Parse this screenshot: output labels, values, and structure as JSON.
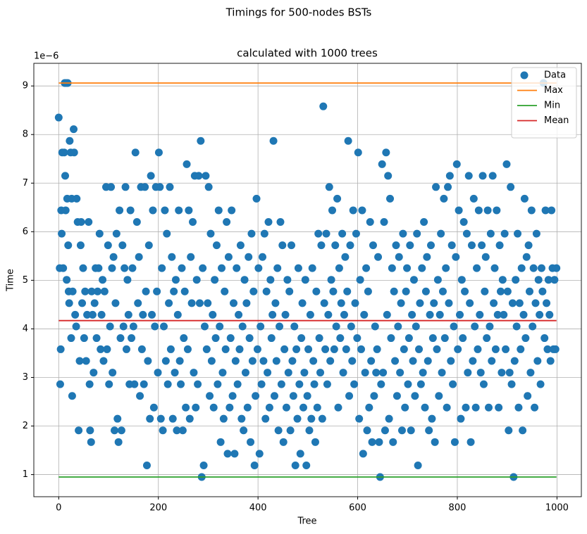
{
  "chart_data": {
    "type": "scatter",
    "suptitle": "Timings for 500-nodes BSTs",
    "title": "calculated with 1000 trees",
    "xlabel": "Tree",
    "ylabel": "Time",
    "offset_text": "1e−6",
    "xlim": [
      -49.95,
      1048.95
    ],
    "xticks": [
      0,
      200,
      400,
      600,
      800,
      1000
    ],
    "ylim": [
      0.545,
      9.466
    ],
    "yticks": [
      1,
      2,
      3,
      4,
      5,
      6,
      7,
      8,
      9
    ],
    "grid": true,
    "legend": "upper right",
    "series": [
      {
        "name": "Data",
        "type": "scatter",
        "color": "#1f77b4",
        "x": [
          0,
          2,
          3,
          4,
          5,
          6,
          7,
          9,
          11,
          12,
          13,
          14,
          15,
          16,
          17,
          18,
          19,
          20,
          21,
          22,
          24,
          25,
          26,
          27,
          28,
          30,
          31,
          33,
          35,
          36,
          38,
          40,
          42,
          44,
          45,
          47,
          49,
          51,
          53,
          55,
          57,
          60,
          62,
          63,
          65,
          66,
          68,
          70,
          72,
          74,
          76,
          78,
          80,
          82,
          84,
          86,
          88,
          90,
          92,
          95,
          97,
          99,
          101,
          103,
          105,
          107,
          108,
          110,
          112,
          114,
          116,
          118,
          120,
          122,
          124,
          126,
          128,
          130,
          132,
          134,
          136,
          138,
          140,
          142,
          144,
          146,
          148,
          150,
          152,
          154,
          157,
          159,
          161,
          163,
          165,
          167,
          169,
          171,
          173,
          175,
          177,
          179,
          181,
          183,
          185,
          187,
          189,
          191,
          193,
          195,
          197,
          199,
          201,
          203,
          205,
          207,
          209,
          211,
          213,
          215,
          217,
          219,
          221,
          223,
          225,
          227,
          229,
          231,
          233,
          235,
          237,
          239,
          241,
          243,
          245,
          247,
          249,
          251,
          253,
          255,
          257,
          259,
          261,
          263,
          265,
          267,
          269,
          271,
          273,
          275,
          277,
          279,
          281,
          283,
          285,
          287,
          289,
          291,
          293,
          295,
          297,
          299,
          301,
          303,
          305,
          307,
          309,
          311,
          313,
          315,
          317,
          319,
          321,
          323,
          325,
          327,
          329,
          331,
          333,
          335,
          337,
          339,
          341,
          343,
          345,
          347,
          349,
          351,
          353,
          355,
          357,
          359,
          361,
          363,
          365,
          367,
          369,
          371,
          373,
          375,
          377,
          379,
          381,
          383,
          385,
          387,
          389,
          391,
          393,
          395,
          397,
          399,
          401,
          403,
          405,
          407,
          409,
          411,
          413,
          415,
          417,
          419,
          421,
          423,
          425,
          427,
          429,
          431,
          433,
          435,
          437,
          439,
          441,
          443,
          445,
          447,
          449,
          451,
          453,
          455,
          457,
          459,
          461,
          463,
          465,
          467,
          469,
          471,
          473,
          475,
          477,
          479,
          481,
          483,
          485,
          487,
          489,
          491,
          493,
          495,
          497,
          499,
          501,
          503,
          505,
          507,
          509,
          511,
          513,
          515,
          517,
          519,
          521,
          523,
          525,
          527,
          529,
          531,
          533,
          535,
          537,
          539,
          541,
          543,
          545,
          547,
          549,
          551,
          553,
          555,
          557,
          559,
          561,
          563,
          565,
          567,
          569,
          571,
          573,
          575,
          577,
          579,
          581,
          583,
          585,
          587,
          589,
          591,
          593,
          595,
          597,
          599,
          601,
          603,
          605,
          607,
          609,
          611,
          613,
          615,
          617,
          619,
          621,
          623,
          625,
          627,
          629,
          631,
          633,
          635,
          637,
          639,
          641,
          643,
          645,
          647,
          649,
          651,
          653,
          655,
          657,
          659,
          661,
          663,
          665,
          667,
          669,
          671,
          673,
          675,
          677,
          679,
          681,
          683,
          685,
          687,
          689,
          691,
          693,
          695,
          697,
          699,
          701,
          703,
          705,
          707,
          709,
          711,
          713,
          715,
          717,
          719,
          721,
          723,
          725,
          727,
          729,
          731,
          733,
          735,
          737,
          739,
          741,
          743,
          745,
          747,
          749,
          751,
          753,
          755,
          757,
          759,
          761,
          763,
          765,
          767,
          769,
          771,
          773,
          775,
          777,
          779,
          781,
          783,
          785,
          787,
          789,
          791,
          793,
          795,
          797,
          799,
          801,
          803,
          805,
          807,
          809,
          811,
          813,
          815,
          817,
          819,
          821,
          823,
          825,
          827,
          829,
          831,
          833,
          835,
          837,
          839,
          841,
          843,
          845,
          847,
          849,
          851,
          853,
          855,
          857,
          859,
          861,
          863,
          865,
          867,
          869,
          871,
          873,
          875,
          877,
          879,
          881,
          883,
          885,
          887,
          889,
          891,
          893,
          895,
          897,
          899,
          901,
          903,
          905,
          907,
          909,
          911,
          913,
          915,
          917,
          919,
          921,
          923,
          925,
          927,
          929,
          931,
          933,
          935,
          937,
          939,
          941,
          943,
          945,
          947,
          949,
          951,
          953,
          955,
          957,
          959,
          961,
          963,
          965,
          967,
          969,
          971,
          973,
          975,
          977,
          979,
          981,
          983,
          985,
          987,
          989,
          991,
          993,
          995,
          997,
          999
        ],
        "values": [
          8.35,
          5.25,
          2.86,
          3.58,
          6.44,
          5.96,
          7.63,
          5.25,
          7.63,
          9.06,
          7.15,
          6.44,
          9.06,
          5.01,
          6.68,
          9.06,
          5.72,
          4.77,
          4.53,
          7.87,
          7.63,
          3.81,
          6.68,
          2.62,
          4.77,
          8.11,
          7.63,
          4.29,
          4.05,
          6.68,
          6.2,
          1.91,
          3.34,
          5.72,
          6.2,
          4.53,
          5.25,
          3.81,
          4.77,
          3.34,
          4.29,
          6.2,
          2.86,
          1.91,
          1.67,
          4.77,
          4.29,
          3.1,
          4.53,
          5.25,
          3.81,
          4.77,
          5.25,
          5.96,
          3.58,
          4.29,
          5.01,
          3.34,
          4.77,
          6.92,
          3.58,
          5.72,
          2.86,
          4.05,
          6.92,
          5.25,
          3.1,
          5.48,
          1.91,
          4.53,
          5.96,
          2.15,
          1.67,
          6.44,
          3.81,
          1.91,
          5.72,
          4.05,
          5.25,
          6.92,
          3.58,
          5.01,
          4.29,
          2.86,
          6.44,
          3.81,
          5.25,
          4.05,
          2.86,
          7.63,
          6.2,
          4.53,
          5.48,
          2.62,
          6.92,
          3.58,
          4.29,
          2.86,
          6.92,
          4.77,
          1.19,
          3.34,
          5.72,
          2.15,
          7.15,
          4.29,
          6.44,
          2.38,
          4.05,
          6.92,
          4.77,
          3.1,
          7.63,
          6.92,
          2.15,
          5.25,
          1.91,
          4.05,
          6.44,
          3.34,
          5.96,
          2.86,
          4.53,
          6.92,
          3.58,
          5.48,
          2.15,
          4.77,
          3.1,
          5.01,
          1.91,
          4.29,
          6.44,
          3.34,
          2.86,
          5.25,
          1.91,
          3.81,
          4.77,
          2.38,
          7.39,
          3.58,
          6.44,
          2.15,
          5.48,
          4.53,
          6.2,
          3.1,
          7.15,
          2.38,
          5.01,
          2.86,
          7.15,
          4.53,
          7.87,
          0.95,
          5.25,
          1.19,
          4.05,
          7.15,
          3.58,
          4.53,
          6.92,
          2.62,
          5.96,
          3.34,
          4.29,
          2.38,
          5.01,
          3.81,
          5.72,
          2.86,
          6.44,
          4.05,
          1.67,
          5.25,
          3.1,
          2.15,
          4.77,
          3.58,
          6.2,
          1.43,
          5.48,
          2.38,
          3.81,
          6.44,
          2.62,
          4.53,
          1.43,
          3.34,
          5.25,
          2.86,
          4.29,
          3.58,
          5.72,
          2.15,
          4.05,
          1.91,
          5.01,
          3.1,
          4.53,
          2.38,
          5.48,
          3.81,
          1.67,
          5.96,
          3.34,
          4.77,
          1.19,
          2.62,
          6.68,
          3.58,
          5.25,
          1.43,
          4.05,
          2.86,
          5.48,
          3.34,
          5.96,
          2.15,
          4.77,
          3.1,
          6.2,
          2.38,
          5.01,
          3.81,
          4.29,
          7.87,
          2.62,
          4.53,
          3.34,
          5.25,
          1.91,
          4.05,
          6.2,
          2.86,
          5.72,
          1.67,
          3.58,
          4.29,
          2.38,
          5.01,
          3.1,
          4.77,
          1.91,
          5.72,
          3.34,
          2.62,
          4.05,
          1.19,
          3.58,
          2.15,
          5.25,
          2.86,
          1.43,
          3.81,
          4.53,
          2.38,
          3.1,
          5.01,
          1.19,
          2.62,
          3.58,
          1.91,
          4.29,
          2.15,
          5.25,
          3.34,
          2.86,
          1.67,
          4.77,
          2.38,
          5.96,
          3.81,
          3.1,
          5.72,
          2.15,
          8.58,
          4.53,
          3.58,
          5.96,
          2.86,
          4.29,
          6.92,
          3.34,
          5.01,
          6.44,
          4.77,
          3.58,
          5.72,
          4.05,
          6.68,
          2.38,
          5.25,
          3.81,
          4.53,
          5.96,
          3.1,
          4.29,
          5.48,
          3.58,
          4.77,
          7.87,
          2.62,
          5.72,
          4.05,
          3.34,
          6.44,
          2.86,
          4.53,
          5.96,
          3.81,
          7.63,
          2.15,
          5.01,
          3.58,
          6.44,
          1.43,
          4.29,
          3.1,
          5.25,
          1.91,
          4.77,
          2.38,
          6.2,
          3.34,
          1.67,
          5.72,
          2.62,
          4.05,
          3.1,
          3.58,
          5.48,
          1.67,
          0.95,
          2.86,
          7.39,
          3.1,
          6.2,
          1.91,
          7.63,
          4.29,
          7.15,
          2.15,
          6.68,
          3.81,
          5.25,
          1.67,
          4.77,
          3.34,
          5.72,
          2.62,
          4.05,
          5.48,
          3.1,
          4.53,
          1.91,
          5.96,
          3.58,
          2.38,
          4.77,
          5.25,
          2.86,
          3.81,
          5.72,
          1.91,
          4.29,
          3.34,
          5.01,
          2.62,
          4.05,
          5.96,
          1.19,
          3.58,
          4.53,
          2.86,
          5.25,
          3.1,
          6.2,
          2.38,
          4.77,
          5.48,
          3.34,
          1.91,
          4.29,
          5.72,
          2.15,
          3.81,
          4.53,
          1.67,
          6.92,
          3.58,
          5.01,
          2.62,
          4.29,
          5.96,
          3.1,
          4.77,
          6.68,
          3.81,
          5.25,
          2.38,
          6.92,
          4.53,
          7.15,
          3.34,
          5.72,
          2.86,
          4.05,
          1.67,
          5.48,
          7.39,
          3.58,
          6.44,
          4.29,
          2.15,
          5.01,
          3.81,
          6.2,
          4.77,
          2.38,
          5.96,
          3.1,
          7.15,
          4.53,
          1.67,
          5.72,
          3.34,
          6.68,
          4.05,
          2.38,
          5.25,
          3.58,
          6.44,
          4.29,
          3.1,
          5.72,
          7.15,
          2.86,
          4.77,
          5.48,
          3.81,
          6.44,
          2.38,
          4.05,
          5.96,
          3.34,
          7.15,
          4.53,
          5.25,
          3.58,
          6.44,
          4.29,
          2.38,
          5.72,
          4.77,
          3.1,
          5.01,
          4.29,
          5.96,
          3.58,
          7.39,
          4.77,
          1.91,
          3.1,
          6.92,
          2.86,
          4.53,
          0.95,
          3.34,
          5.01,
          4.05,
          5.96,
          2.38,
          4.53,
          3.58,
          5.25,
          1.91,
          4.29,
          6.68,
          3.81,
          5.48,
          2.62,
          5.72,
          4.77,
          3.1,
          6.44,
          4.05,
          5.25,
          2.38,
          4.53,
          5.96,
          3.34,
          5.01,
          4.29,
          2.86,
          5.25,
          4.77,
          9.06,
          3.81,
          6.44,
          4.53,
          3.58,
          5.01,
          4.29,
          3.34,
          6.44,
          5.25,
          3.58,
          5.01,
          3.58,
          5.25
        ]
      },
      {
        "name": "Max",
        "type": "line",
        "color": "#ff7f0e",
        "x": [
          0,
          999
        ],
        "values": [
          9.06,
          9.06
        ]
      },
      {
        "name": "Min",
        "type": "line",
        "color": "#2ca02c",
        "x": [
          0,
          999
        ],
        "values": [
          0.95,
          0.95
        ]
      },
      {
        "name": "Mean",
        "type": "line",
        "color": "#d62728",
        "x": [
          0,
          999
        ],
        "values": [
          4.17,
          4.17
        ]
      }
    ]
  }
}
